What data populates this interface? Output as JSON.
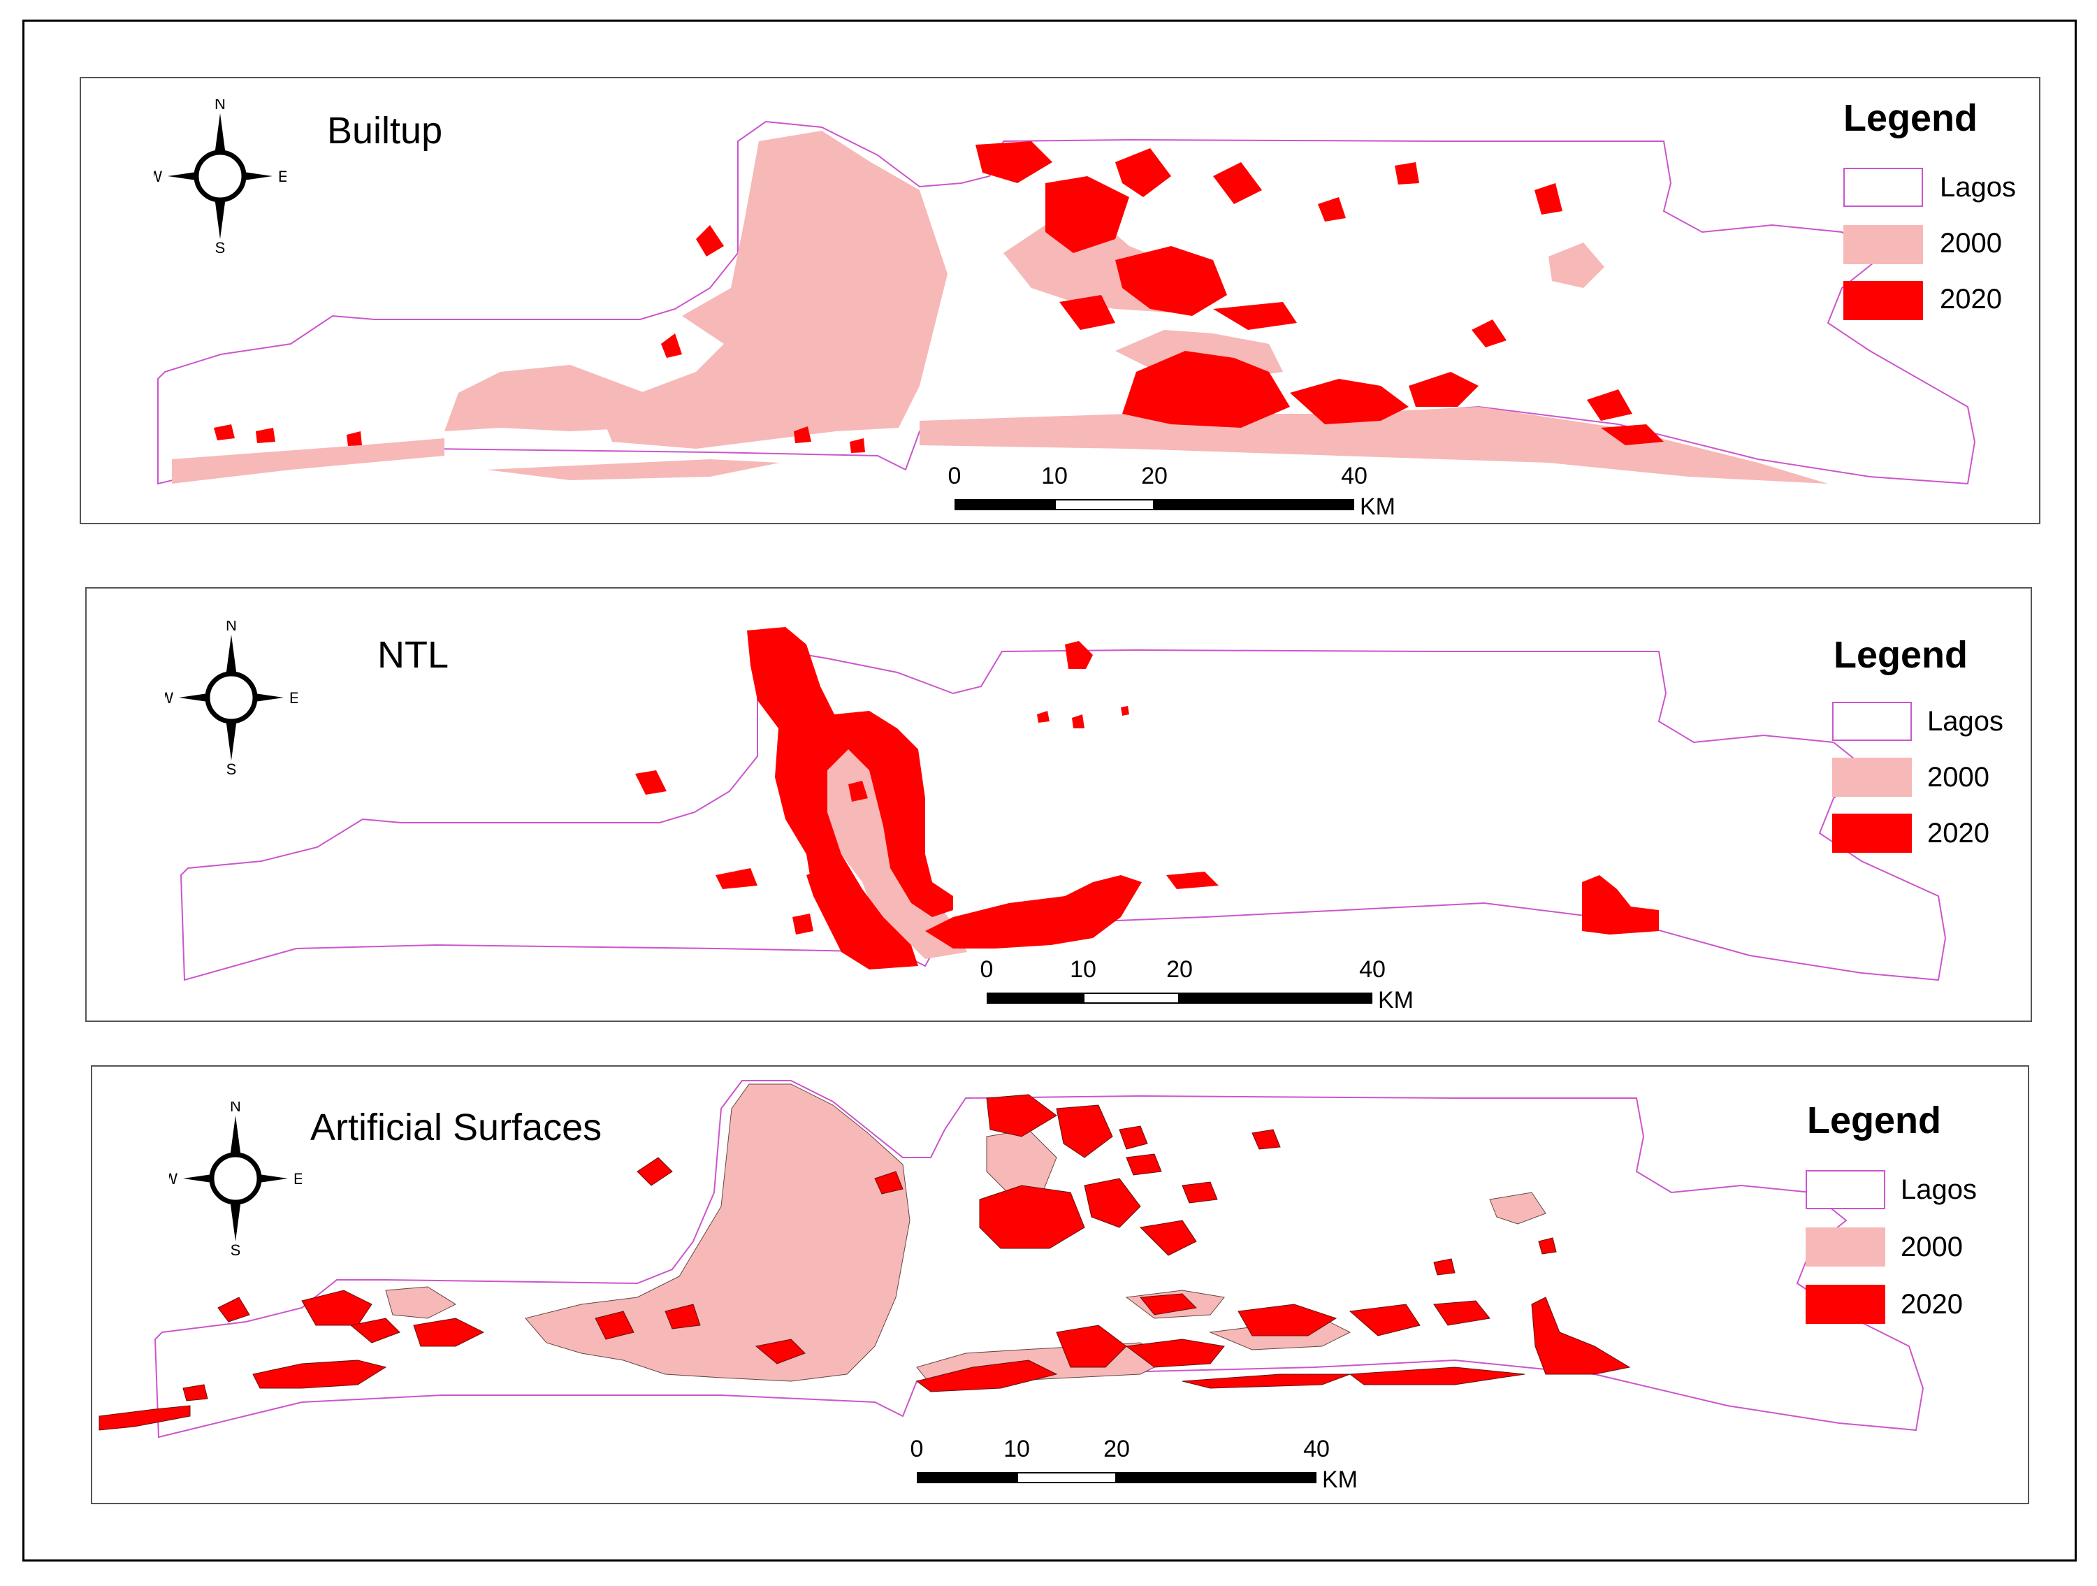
{
  "colors": {
    "lagos_outline": "#cc55cc",
    "y2000": "#f7b8b8",
    "y2020": "#ff0000",
    "border": "#000000"
  },
  "panels": [
    {
      "title": "Builtup",
      "legend": {
        "title": "Legend",
        "items": [
          {
            "label": "Lagos"
          },
          {
            "label": "2000"
          },
          {
            "label": "2020"
          }
        ]
      },
      "compass": {
        "n": "N",
        "s": "S",
        "e": "E",
        "w": "W"
      },
      "scale": {
        "ticks": [
          "0",
          "10",
          "20",
          "40"
        ],
        "unit": "KM"
      }
    },
    {
      "title": "NTL",
      "legend": {
        "title": "Legend",
        "items": [
          {
            "label": "Lagos"
          },
          {
            "label": "2000"
          },
          {
            "label": "2020"
          }
        ]
      },
      "compass": {
        "n": "N",
        "s": "S",
        "e": "E",
        "w": "W"
      },
      "scale": {
        "ticks": [
          "0",
          "10",
          "20",
          "40"
        ],
        "unit": "KM"
      }
    },
    {
      "title": "Artificial Surfaces",
      "legend": {
        "title": "Legend",
        "items": [
          {
            "label": "Lagos"
          },
          {
            "label": "2000"
          },
          {
            "label": "2020"
          }
        ]
      },
      "compass": {
        "n": "N",
        "s": "S",
        "e": "E",
        "w": "W"
      },
      "scale": {
        "ticks": [
          "0",
          "10",
          "20",
          "40"
        ],
        "unit": "KM"
      }
    }
  ]
}
